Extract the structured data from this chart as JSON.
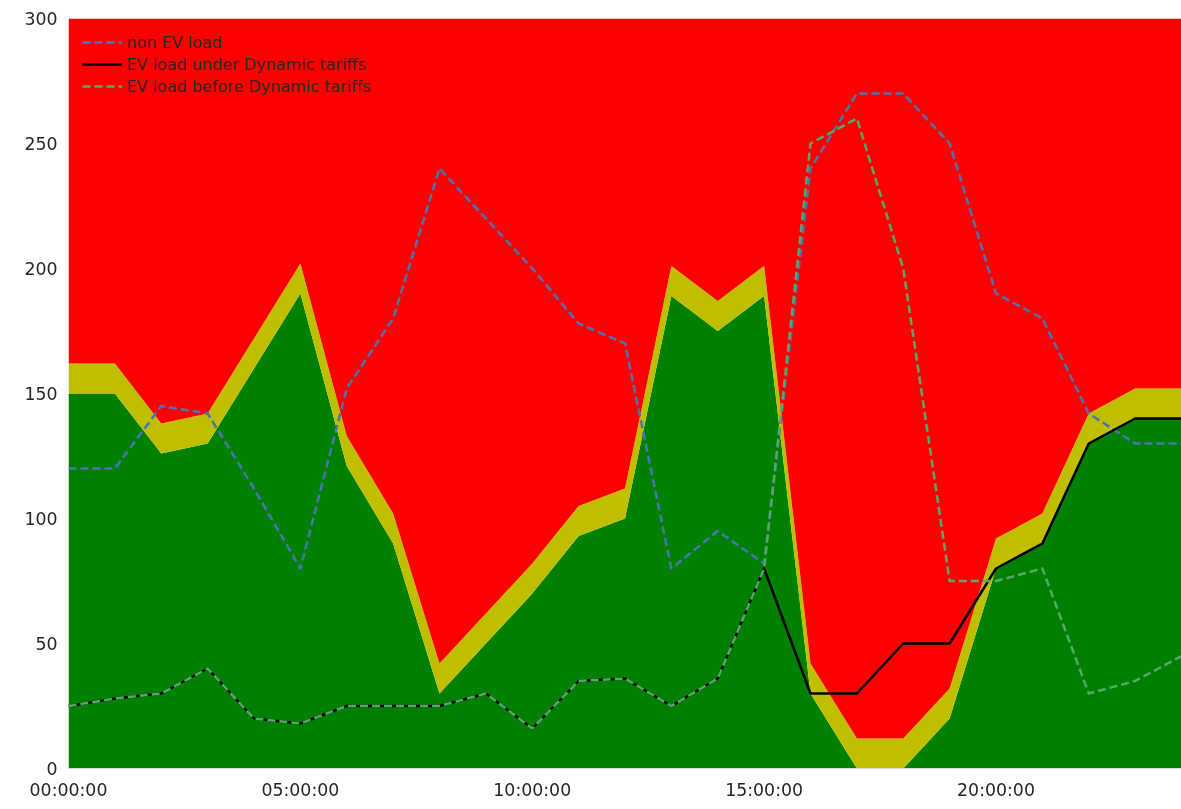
{
  "chart_data": {
    "type": "area",
    "stacked": true,
    "x": [
      0,
      1,
      2,
      3,
      4,
      5,
      6,
      7,
      8,
      9,
      10,
      11,
      12,
      13,
      14,
      15,
      16,
      17,
      18,
      19,
      20,
      21,
      22,
      23,
      24
    ],
    "series": [
      {
        "color": "#008000",
        "values": [
          150,
          150,
          126,
          130,
          160,
          190,
          121,
          90,
          30,
          50,
          70,
          93,
          100,
          189,
          175,
          189,
          30,
          0,
          0,
          20,
          80,
          90,
          130,
          140,
          140
        ]
      },
      {
        "color": "#bfbf00",
        "values": [
          12,
          12,
          12,
          12,
          12,
          12,
          12,
          12,
          12,
          12,
          12,
          12,
          12,
          12,
          12,
          12,
          12,
          12,
          12,
          12,
          12,
          12,
          12,
          12,
          12
        ]
      },
      {
        "color": "#ff0000",
        "values": [
          138,
          138,
          162,
          158,
          128,
          98,
          167,
          198,
          258,
          238,
          218,
          195,
          188,
          99,
          113,
          99,
          258,
          288,
          288,
          268,
          208,
          198,
          158,
          148,
          148
        ]
      },
      {
        "type": "line",
        "name": "non EV load",
        "color": "#4c72b0",
        "line_style": "dashed",
        "values": [
          120,
          120,
          145,
          142,
          112,
          80,
          152,
          180,
          240,
          220,
          200,
          178,
          170,
          80,
          95,
          82,
          240,
          270,
          270,
          250,
          190,
          180,
          142,
          130,
          130
        ]
      },
      {
        "type": "line",
        "name": "EV load under Dynamic tariffs",
        "color": "#000000",
        "line_style": "solid",
        "values": [
          25,
          28,
          30,
          40,
          20,
          18,
          25,
          25,
          25,
          30,
          16,
          35,
          36,
          25,
          36,
          80,
          30,
          30,
          50,
          50,
          80,
          90,
          130,
          140,
          140
        ]
      },
      {
        "type": "line",
        "name": "EV load before Dynamic tariffs",
        "color": "#55a868",
        "line_style": "dashed",
        "values": [
          25,
          28,
          30,
          40,
          20,
          18,
          25,
          25,
          25,
          30,
          16,
          35,
          36,
          25,
          36,
          80,
          250,
          260,
          200,
          75,
          75,
          80,
          30,
          35,
          45
        ]
      }
    ],
    "xlim": [
      0,
      24
    ],
    "xticks": [
      {
        "value": 0,
        "label": "00:00:00"
      },
      {
        "value": 5,
        "label": "05:00:00"
      },
      {
        "value": 10,
        "label": "10:00:00"
      },
      {
        "value": 15,
        "label": "15:00:00"
      },
      {
        "value": 20,
        "label": "20:00:00"
      }
    ],
    "ylim": [
      0,
      300
    ],
    "yticks": [
      0,
      50,
      100,
      150,
      200,
      250,
      300
    ],
    "grid": false,
    "legend": "top left"
  }
}
